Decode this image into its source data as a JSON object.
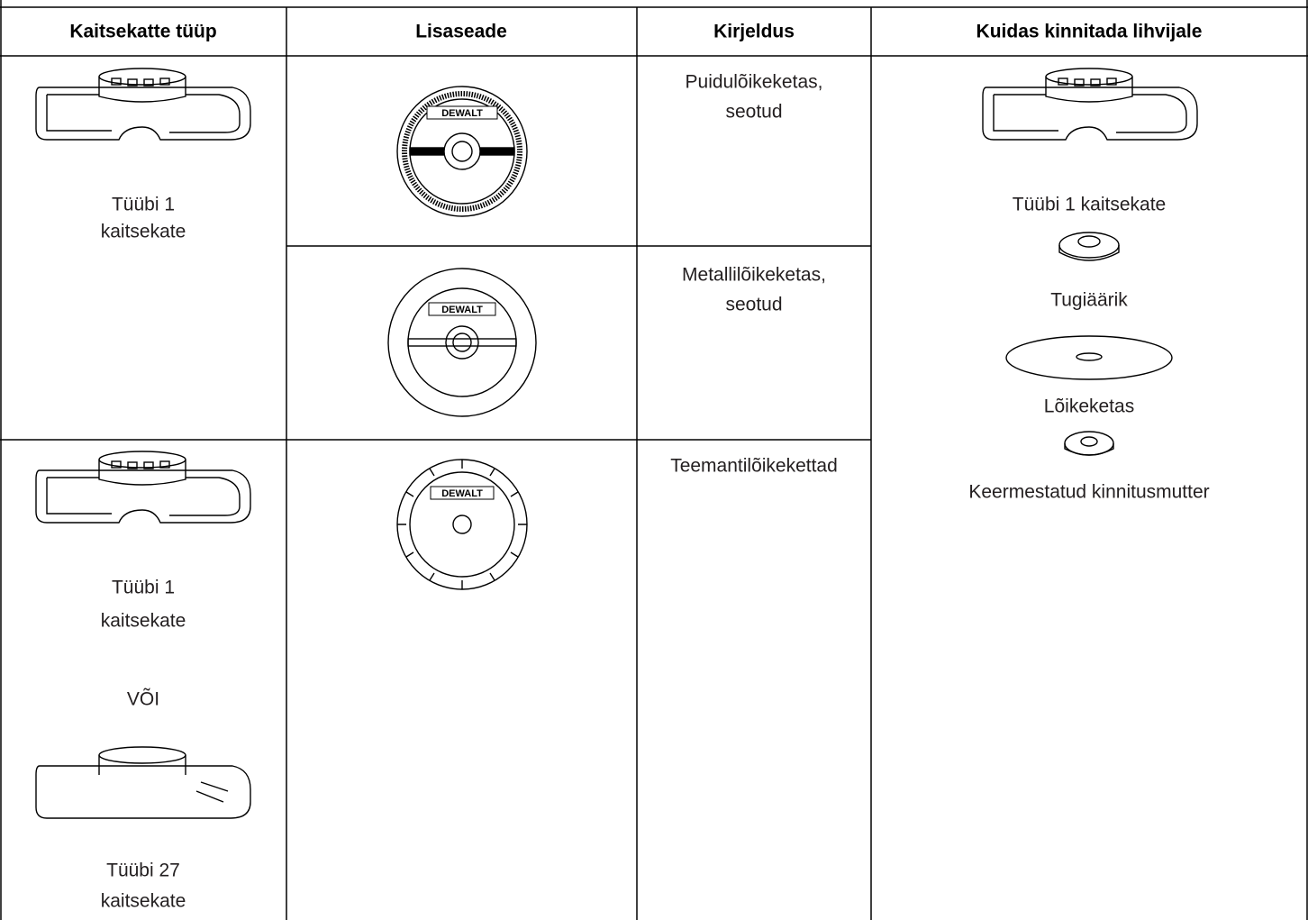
{
  "table": {
    "header": [
      "Kaitsekatte tüüp",
      "Lisaseade",
      "Kirjeldus",
      "Kuidas kinnitada lihvijale"
    ],
    "guard_1": [
      "Tüübi 1",
      "kaitsekate"
    ],
    "guard_2": [
      "Tüübi 1",
      "kaitsekate",
      "VÕI",
      "Tüübi 27",
      "kaitsekate"
    ],
    "descriptions": [
      [
        "Puidulõikeketas,",
        "seotud"
      ],
      [
        "Metallilõikeketas,",
        "seotud"
      ],
      [
        "Teemantilõikekettad"
      ]
    ],
    "brand": "DEWALT",
    "mounting": [
      "Tüübi 1 kaitsekate",
      "Tugiäärik",
      "Lõikeketas",
      "Keermestatud kinnitusmutter"
    ]
  }
}
